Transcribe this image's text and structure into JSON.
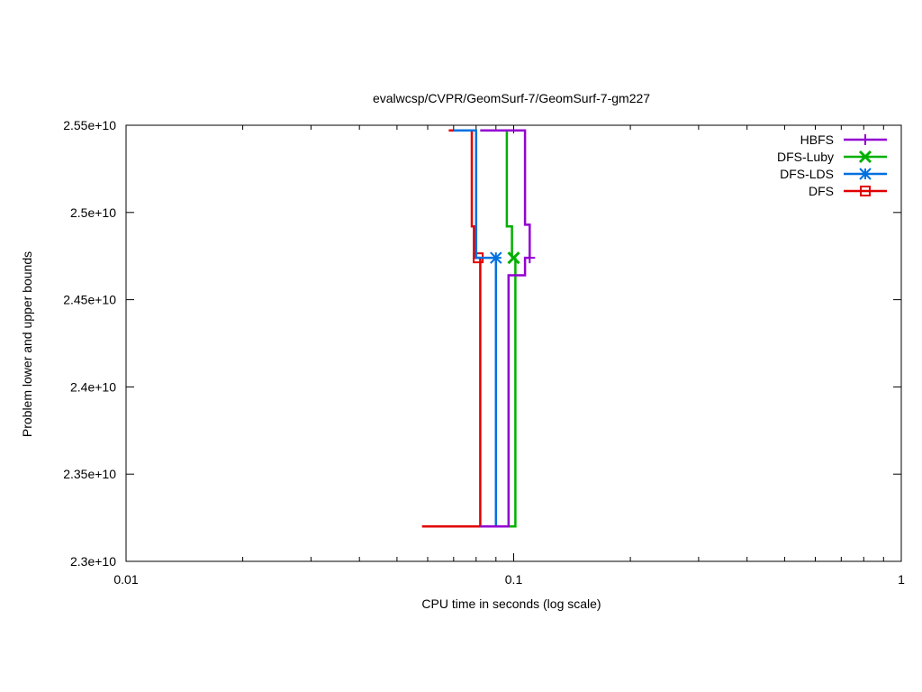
{
  "chart_data": {
    "type": "line",
    "title": "evalwcsp/CVPR/GeomSurf-7/GeomSurf-7-gm227",
    "xlabel": "CPU time in seconds (log scale)",
    "ylabel": "Problem lower and upper bounds",
    "x_scale": "log",
    "xlim": [
      0.01,
      1
    ],
    "ylim": [
      23000000000,
      25500000000
    ],
    "x_ticks": [
      {
        "value": 0.01,
        "label": "0.01"
      },
      {
        "value": 0.1,
        "label": "0.1"
      },
      {
        "value": 1,
        "label": "1"
      }
    ],
    "y_ticks": [
      {
        "value": 23000000000,
        "label": "2.3e+10"
      },
      {
        "value": 23500000000,
        "label": "2.35e+10"
      },
      {
        "value": 24000000000,
        "label": "2.4e+10"
      },
      {
        "value": 24500000000,
        "label": "2.45e+10"
      },
      {
        "value": 25000000000,
        "label": "2.5e+10"
      },
      {
        "value": 25500000000,
        "label": "2.55e+10"
      }
    ],
    "legend_position": "top-right",
    "series": [
      {
        "name": "HBFS",
        "color": "#9400d3",
        "marker": "plus",
        "upper": [
          [
            0.082,
            25470000000
          ],
          [
            0.107,
            25470000000
          ],
          [
            0.107,
            24930000000
          ],
          [
            0.11,
            24930000000
          ],
          [
            0.11,
            24740000000
          ]
        ],
        "lower": [
          [
            0.082,
            23200000000
          ],
          [
            0.097,
            23200000000
          ],
          [
            0.097,
            24640000000
          ],
          [
            0.107,
            24640000000
          ],
          [
            0.107,
            24740000000
          ],
          [
            0.11,
            24740000000
          ]
        ],
        "final": [
          0.11,
          24740000000
        ]
      },
      {
        "name": "DFS-Luby",
        "color": "#00b000",
        "marker": "x",
        "upper": [
          [
            0.082,
            25470000000
          ],
          [
            0.096,
            25470000000
          ],
          [
            0.096,
            24920000000
          ],
          [
            0.099,
            24920000000
          ],
          [
            0.099,
            24740000000
          ]
        ],
        "lower": [
          [
            0.082,
            23200000000
          ],
          [
            0.101,
            23200000000
          ],
          [
            0.101,
            24740000000
          ]
        ],
        "final": [
          0.1,
          24740000000
        ]
      },
      {
        "name": "DFS-LDS",
        "color": "#0070e0",
        "marker": "star",
        "upper": [
          [
            0.07,
            25470000000
          ],
          [
            0.08,
            25470000000
          ],
          [
            0.08,
            24740000000
          ],
          [
            0.09,
            24740000000
          ]
        ],
        "lower": [
          [
            0.082,
            23200000000
          ],
          [
            0.09,
            23200000000
          ],
          [
            0.09,
            24740000000
          ]
        ],
        "final": [
          0.09,
          24740000000
        ]
      },
      {
        "name": "DFS",
        "color": "#e00000",
        "marker": "square",
        "upper": [
          [
            0.068,
            25470000000
          ],
          [
            0.078,
            25470000000
          ],
          [
            0.078,
            24920000000
          ],
          [
            0.079,
            24920000000
          ],
          [
            0.079,
            24740000000
          ],
          [
            0.082,
            24740000000
          ]
        ],
        "lower": [
          [
            0.058,
            23200000000
          ],
          [
            0.082,
            23200000000
          ],
          [
            0.082,
            24740000000
          ]
        ],
        "final": [
          0.081,
          24740000000
        ]
      }
    ]
  }
}
